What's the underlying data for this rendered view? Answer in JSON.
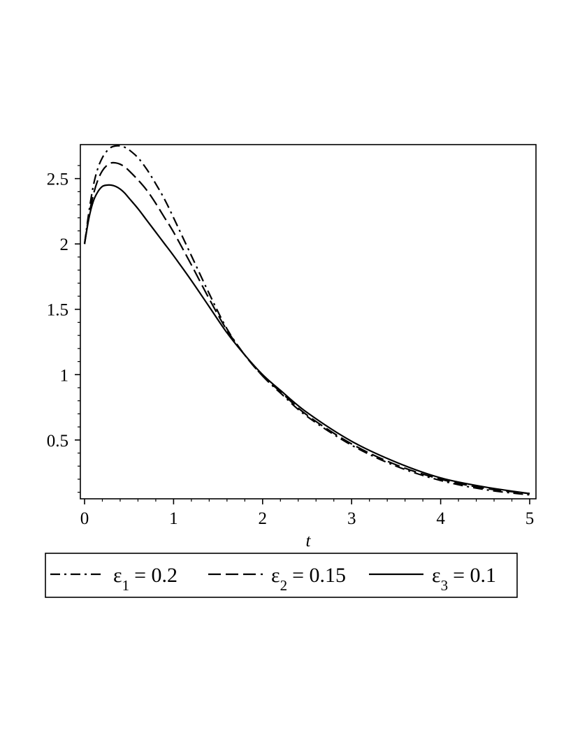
{
  "chart_data": {
    "type": "line",
    "title": "",
    "xlabel": "t",
    "ylabel": "",
    "xlim": [
      0,
      5
    ],
    "ylim": [
      0.05,
      2.76
    ],
    "xticks": [
      0,
      1,
      2,
      3,
      4,
      5
    ],
    "xtick_labels": [
      "0",
      "1",
      "2",
      "3",
      "4",
      "5"
    ],
    "yticks": [
      0.5,
      1,
      1.5,
      2,
      2.5
    ],
    "ytick_labels": [
      "0.5",
      "1",
      "1.5",
      "2",
      "2.5"
    ],
    "grid": false,
    "legend_position": "bottom",
    "series": [
      {
        "name": "ε1 = 0.2",
        "legend_symbol": "ε",
        "legend_subscript": "1",
        "legend_value": "= 0.2",
        "style": "dashdot",
        "color": "#000000",
        "x": [
          0,
          0.05,
          0.1,
          0.15,
          0.2,
          0.25,
          0.3,
          0.35,
          0.4,
          0.45,
          0.5,
          0.6,
          0.7,
          0.8,
          0.9,
          1.0,
          1.2,
          1.4,
          1.6,
          1.8,
          2.0,
          2.2,
          2.5,
          3.0,
          3.5,
          4.0,
          4.5,
          5.0
        ],
        "y": [
          2.0,
          2.25,
          2.45,
          2.58,
          2.66,
          2.71,
          2.74,
          2.75,
          2.75,
          2.74,
          2.72,
          2.66,
          2.57,
          2.46,
          2.34,
          2.2,
          1.91,
          1.62,
          1.35,
          1.15,
          0.99,
          0.86,
          0.68,
          0.46,
          0.3,
          0.19,
          0.12,
          0.08
        ]
      },
      {
        "name": "ε2 = 0.15",
        "legend_symbol": "ε",
        "legend_subscript": "2",
        "legend_value": "= 0.15",
        "style": "dashed",
        "color": "#000000",
        "x": [
          0,
          0.05,
          0.1,
          0.15,
          0.2,
          0.25,
          0.3,
          0.35,
          0.4,
          0.45,
          0.5,
          0.6,
          0.7,
          0.8,
          0.9,
          1.0,
          1.2,
          1.4,
          1.6,
          1.8,
          2.0,
          2.2,
          2.5,
          3.0,
          3.5,
          4.0,
          4.5,
          5.0
        ],
        "y": [
          2.0,
          2.22,
          2.38,
          2.49,
          2.56,
          2.6,
          2.62,
          2.62,
          2.61,
          2.59,
          2.56,
          2.49,
          2.41,
          2.31,
          2.2,
          2.09,
          1.84,
          1.58,
          1.34,
          1.15,
          0.99,
          0.87,
          0.69,
          0.47,
          0.31,
          0.2,
          0.13,
          0.09
        ]
      },
      {
        "name": "ε3 = 0.1",
        "legend_symbol": "ε",
        "legend_subscript": "3",
        "legend_value": "= 0.1",
        "style": "solid",
        "color": "#000000",
        "x": [
          0,
          0.05,
          0.1,
          0.15,
          0.2,
          0.25,
          0.3,
          0.35,
          0.4,
          0.45,
          0.5,
          0.6,
          0.7,
          0.8,
          0.9,
          1.0,
          1.2,
          1.4,
          1.6,
          1.8,
          2.0,
          2.2,
          2.5,
          3.0,
          3.5,
          4.0,
          4.5,
          5.0
        ],
        "y": [
          2.0,
          2.2,
          2.33,
          2.4,
          2.44,
          2.45,
          2.45,
          2.44,
          2.42,
          2.39,
          2.35,
          2.27,
          2.18,
          2.09,
          2.0,
          1.91,
          1.72,
          1.52,
          1.32,
          1.15,
          1.0,
          0.88,
          0.71,
          0.49,
          0.33,
          0.21,
          0.14,
          0.09
        ]
      }
    ]
  }
}
